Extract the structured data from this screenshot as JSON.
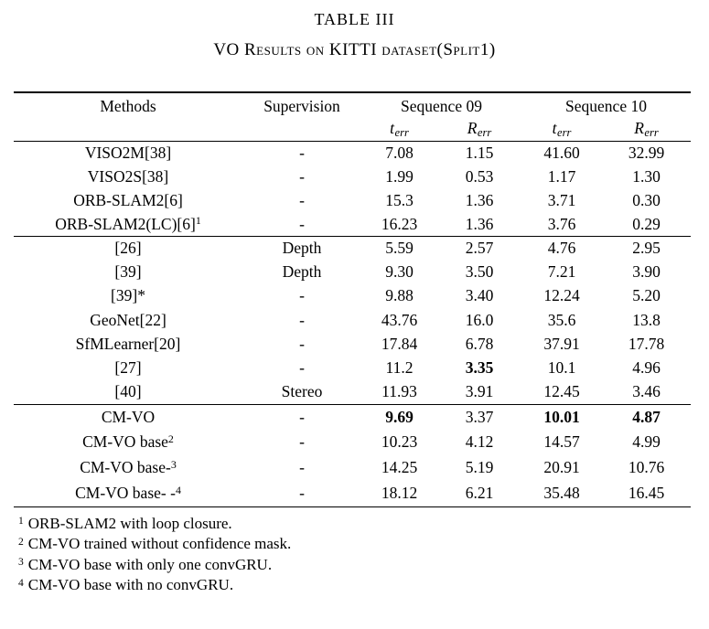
{
  "colors": {
    "background": "#ffffff",
    "text": "#000000"
  },
  "caption": {
    "label": "TABLE III",
    "title": "VO Results on KITTI dataset(Split1)"
  },
  "table": {
    "headers": {
      "methods": "Methods",
      "supervision": "Supervision",
      "seq09": "Sequence 09",
      "seq10": "Sequence 10",
      "t_sym": "t",
      "R_sym": "R",
      "err_sub": "err"
    },
    "groups": [
      {
        "rows": [
          {
            "method": "VISO2M[38]",
            "sup": "",
            "supervision": "-",
            "values": [
              "7.08",
              "1.15",
              "41.60",
              "32.99"
            ],
            "bold": [
              false,
              false,
              false,
              false
            ]
          },
          {
            "method": "VISO2S[38]",
            "sup": "",
            "supervision": "-",
            "values": [
              "1.99",
              "0.53",
              "1.17",
              "1.30"
            ],
            "bold": [
              false,
              false,
              false,
              false
            ]
          },
          {
            "method": "ORB-SLAM2[6]",
            "sup": "",
            "supervision": "-",
            "values": [
              "15.3",
              "1.36",
              "3.71",
              "0.30"
            ],
            "bold": [
              false,
              false,
              false,
              false
            ]
          },
          {
            "method": "ORB-SLAM2(LC)[6]",
            "sup": "1",
            "supervision": "-",
            "values": [
              "16.23",
              "1.36",
              "3.76",
              "0.29"
            ],
            "bold": [
              false,
              false,
              false,
              false
            ]
          }
        ]
      },
      {
        "rows": [
          {
            "method": "[26]",
            "sup": "",
            "supervision": "Depth",
            "values": [
              "5.59",
              "2.57",
              "4.76",
              "2.95"
            ],
            "bold": [
              false,
              false,
              false,
              false
            ]
          },
          {
            "method": "[39]",
            "sup": "",
            "supervision": "Depth",
            "values": [
              "9.30",
              "3.50",
              "7.21",
              "3.90"
            ],
            "bold": [
              false,
              false,
              false,
              false
            ]
          },
          {
            "method": "[39]*",
            "sup": "",
            "supervision": "-",
            "values": [
              "9.88",
              "3.40",
              "12.24",
              "5.20"
            ],
            "bold": [
              false,
              false,
              false,
              false
            ]
          },
          {
            "method": "GeoNet[22]",
            "sup": "",
            "supervision": "-",
            "values": [
              "43.76",
              "16.0",
              "35.6",
              "13.8"
            ],
            "bold": [
              false,
              false,
              false,
              false
            ]
          },
          {
            "method": "SfMLearner[20]",
            "sup": "",
            "supervision": "-",
            "values": [
              "17.84",
              "6.78",
              "37.91",
              "17.78"
            ],
            "bold": [
              false,
              false,
              false,
              false
            ]
          },
          {
            "method": "[27]",
            "sup": "",
            "supervision": "-",
            "values": [
              "11.2",
              "3.35",
              "10.1",
              "4.96"
            ],
            "bold": [
              false,
              true,
              false,
              false
            ]
          },
          {
            "method": "[40]",
            "sup": "",
            "supervision": "Stereo",
            "values": [
              "11.93",
              "3.91",
              "12.45",
              "3.46"
            ],
            "bold": [
              false,
              false,
              false,
              false
            ]
          }
        ]
      },
      {
        "rows": [
          {
            "method": "CM-VO",
            "sup": "",
            "supervision": "-",
            "values": [
              "9.69",
              "3.37",
              "10.01",
              "4.87"
            ],
            "bold": [
              true,
              false,
              true,
              true
            ]
          },
          {
            "method": "CM-VO base",
            "sup": "2",
            "supervision": "-",
            "values": [
              "10.23",
              "4.12",
              "14.57",
              "4.99"
            ],
            "bold": [
              false,
              false,
              false,
              false
            ]
          },
          {
            "method": "CM-VO base-",
            "sup": "3",
            "supervision": "-",
            "values": [
              "14.25",
              "5.19",
              "20.91",
              "10.76"
            ],
            "bold": [
              false,
              false,
              false,
              false
            ]
          },
          {
            "method": "CM-VO base- -",
            "sup": "4",
            "supervision": "-",
            "values": [
              "18.12",
              "6.21",
              "35.48",
              "16.45"
            ],
            "bold": [
              false,
              false,
              false,
              false
            ]
          }
        ]
      }
    ]
  },
  "footnotes": [
    {
      "marker": "1",
      "text": "ORB-SLAM2 with loop closure."
    },
    {
      "marker": "2",
      "text": "CM-VO trained without confidence mask."
    },
    {
      "marker": "3",
      "text": "CM-VO base with only one convGRU."
    },
    {
      "marker": "4",
      "text": "CM-VO base with no convGRU."
    }
  ]
}
